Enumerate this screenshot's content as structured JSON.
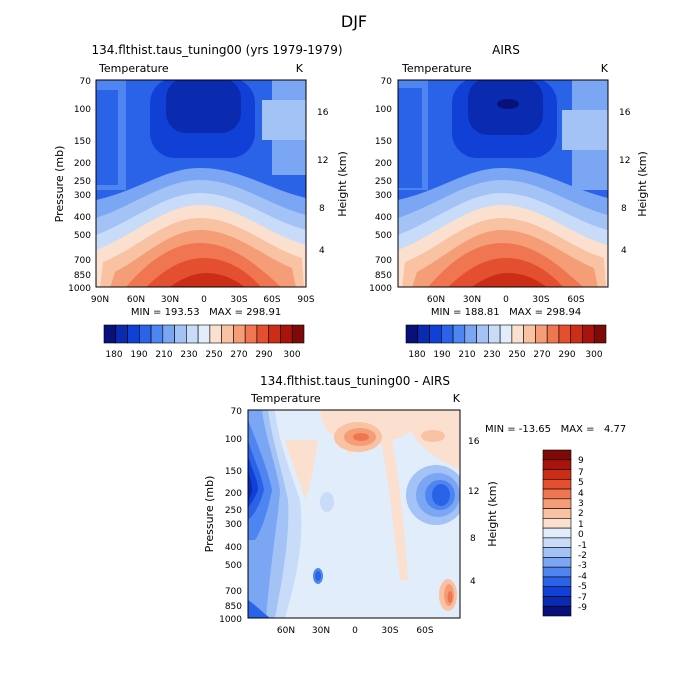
{
  "page_title": "DJF",
  "colors": {
    "sequential": [
      "#08107a",
      "#0a2bb0",
      "#1140d6",
      "#2a63e8",
      "#4f85f0",
      "#7aa6f3",
      "#a3c2f6",
      "#c8dbf8",
      "#e2edfb",
      "#fbe0cf",
      "#f8c2a3",
      "#f49d77",
      "#ef7650",
      "#e4502f",
      "#cc2d17",
      "#a8140b",
      "#7d0a06"
    ],
    "diverging": [
      "#08107a",
      "#0a2bb0",
      "#1140d6",
      "#2a63e8",
      "#4f85f0",
      "#7aa6f3",
      "#a3c2f6",
      "#c8dbf8",
      "#e2edfb",
      "#fbe0cf",
      "#f8c2a3",
      "#f49d77",
      "#ef7650",
      "#e4502f",
      "#cc2d17",
      "#a8140b",
      "#7d0a06"
    ]
  },
  "chart_data": [
    {
      "type": "heatmap",
      "title": "134.flthist.taus_tuning00 (yrs 1979-1979)",
      "variable_label": "Temperature",
      "units": "K",
      "ylabel": "Pressure (mb)",
      "ylabel_right": "Height (km)",
      "xticks": [
        "90N",
        "60N",
        "30N",
        "0",
        "30S",
        "60S",
        "90S"
      ],
      "yticks": [
        "70",
        "100",
        "150",
        "200",
        "250",
        "300",
        "400",
        "500",
        "700",
        "850",
        "1000"
      ],
      "height_ticks": [
        "4",
        "8",
        "12",
        "16"
      ],
      "stats": "MIN = 193.53   MAX = 298.91",
      "min": 193.53,
      "max": 298.91,
      "colorbar_labels": [
        "180",
        "190",
        "210",
        "230",
        "250",
        "270",
        "290",
        "300"
      ],
      "colorbar_orientation": "horizontal"
    },
    {
      "type": "heatmap",
      "title": "AIRS",
      "variable_label": "Temperature",
      "units": "K",
      "ylabel": "",
      "ylabel_right": "Height (km)",
      "xticks": [
        "60N",
        "30N",
        "0",
        "30S",
        "60S"
      ],
      "yticks": [
        "70",
        "100",
        "150",
        "200",
        "250",
        "300",
        "400",
        "500",
        "700",
        "850",
        "1000"
      ],
      "height_ticks": [
        "4",
        "8",
        "12",
        "16"
      ],
      "stats": "MIN = 188.81   MAX = 298.94",
      "min": 188.81,
      "max": 298.94,
      "colorbar_labels": [
        "180",
        "190",
        "210",
        "230",
        "250",
        "270",
        "290",
        "300"
      ],
      "colorbar_orientation": "horizontal"
    },
    {
      "type": "heatmap",
      "title": "134.flthist.taus_tuning00 - AIRS",
      "variable_label": "Temperature",
      "units": "K",
      "ylabel": "Pressure (mb)",
      "ylabel_right": "Height (km)",
      "xticks": [
        "60N",
        "30N",
        "0",
        "30S",
        "60S"
      ],
      "yticks": [
        "70",
        "100",
        "150",
        "200",
        "250",
        "300",
        "400",
        "500",
        "700",
        "850",
        "1000"
      ],
      "height_ticks": [
        "4",
        "8",
        "12",
        "16"
      ],
      "stats": "MIN = -13.65   MAX =   4.77",
      "min": -13.65,
      "max": 4.77,
      "colorbar_labels": [
        "9",
        "7",
        "5",
        "4",
        "3",
        "2",
        "1",
        "0",
        "-1",
        "-2",
        "-3",
        "-4",
        "-5",
        "-7",
        "-9"
      ],
      "colorbar_orientation": "vertical"
    }
  ]
}
